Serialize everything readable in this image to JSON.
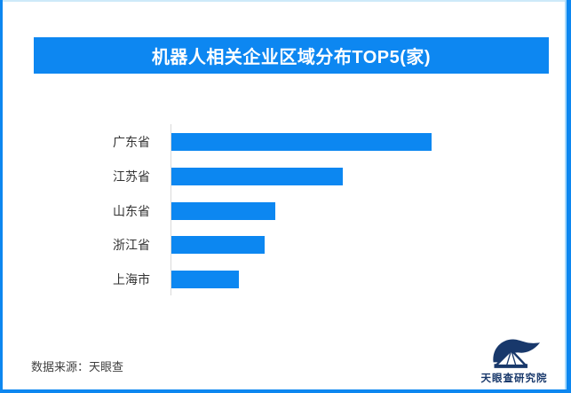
{
  "page": {
    "background": "#ffffff",
    "edge_stripe_color": "#0d87f0",
    "edge_top_line_color": "#cdeaf9"
  },
  "header": {
    "title": "机器人相关企业区域分布TOP5(家)",
    "banner_color": "#0d87f1",
    "title_color": "#ffffff"
  },
  "chart_data": {
    "type": "bar",
    "orientation": "horizontal",
    "title": "机器人相关企业区域分布TOP5(家)",
    "categories": [
      "广东省",
      "江苏省",
      "山东省",
      "浙江省",
      "上海市"
    ],
    "values": [
      100,
      66,
      40,
      36,
      26
    ],
    "value_scale": "relative; chart shows no numeric axis, ticks or data labels",
    "xlabel": "",
    "ylabel": "",
    "grid": false,
    "legend": false,
    "value_labels_shown": false,
    "bar_color": "#0c87f1",
    "axis_line_color": "#d9d9d9"
  },
  "footer": {
    "source_text": "数据来源：天眼查",
    "logo": {
      "text": "天眼查研究院",
      "color": "#18386b",
      "icon": "tianyancha-logo"
    }
  }
}
